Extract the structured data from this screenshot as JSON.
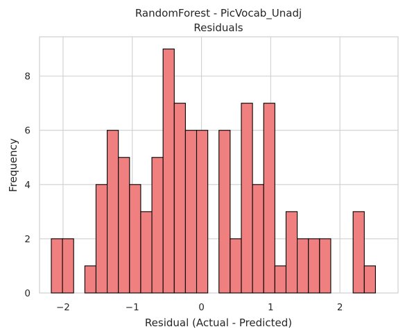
{
  "chart_data": {
    "type": "bar",
    "title": "RandomForest - PicVocab_Unadj",
    "subtitle": "Residuals",
    "xlabel": "Residual (Actual - Predicted)",
    "ylabel": "Frequency",
    "xlim": [
      -2.34,
      2.84
    ],
    "ylim": [
      0,
      9.45
    ],
    "xticks": [
      -2,
      -1,
      0,
      1,
      2
    ],
    "xtick_labels": [
      "−2",
      "−1",
      "0",
      "1",
      "2"
    ],
    "yticks": [
      0,
      2,
      4,
      6,
      8
    ],
    "ytick_labels": [
      "0",
      "2",
      "4",
      "6",
      "8"
    ],
    "grid": true,
    "bar_color": "#f08080",
    "edge_color": "#000000",
    "bin_start": -2.17,
    "bin_width": 0.1615,
    "counts": [
      2,
      2,
      0,
      1,
      4,
      6,
      5,
      4,
      3,
      5,
      9,
      7,
      6,
      6,
      0,
      6,
      2,
      7,
      4,
      7,
      1,
      3,
      2,
      2,
      2,
      0,
      0,
      3,
      1
    ]
  }
}
